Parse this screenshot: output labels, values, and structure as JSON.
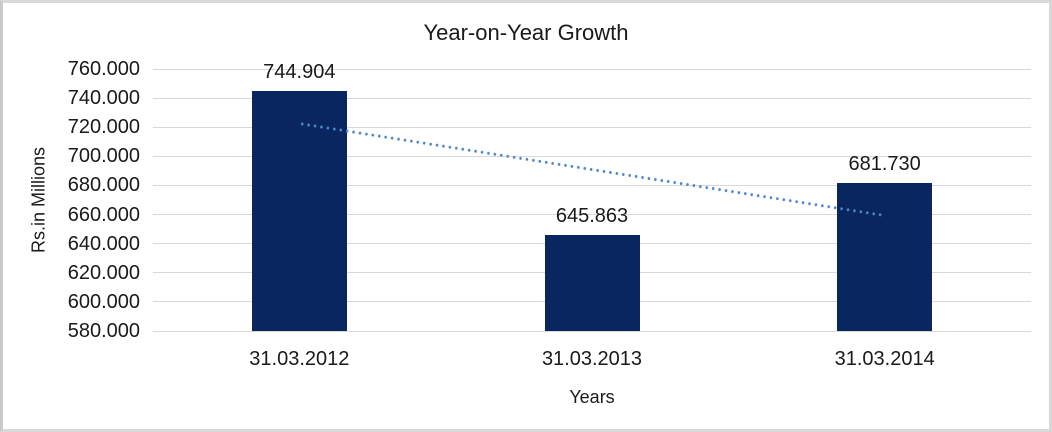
{
  "chart_data": {
    "type": "bar",
    "title": "Year-on-Year Growth",
    "xlabel": "Years",
    "ylabel": "Rs.in Millions",
    "categories": [
      "31.03.2012",
      "31.03.2013",
      "31.03.2014"
    ],
    "values": [
      744.904,
      645.863,
      681.73
    ],
    "bar_labels": [
      "744.904",
      "645.863",
      "681.730"
    ],
    "ylim": [
      580,
      760
    ],
    "ytick_step": 20,
    "ytick_labels": [
      "580.000",
      "600.000",
      "620.000",
      "640.000",
      "660.000",
      "680.000",
      "700.000",
      "720.000",
      "740.000",
      "760.000"
    ],
    "grid": true,
    "legend_position": "none",
    "trendline": {
      "type": "linear",
      "style": "dotted",
      "start_value": 722.4,
      "end_value": 659.2
    },
    "colors": {
      "bar": "#0A2660",
      "trendline": "#4E87C8",
      "gridline": "#D9D9D9",
      "text": "#1A1A1A",
      "background": "#FFFFFF",
      "frame_border": "#D8D8D8"
    }
  }
}
